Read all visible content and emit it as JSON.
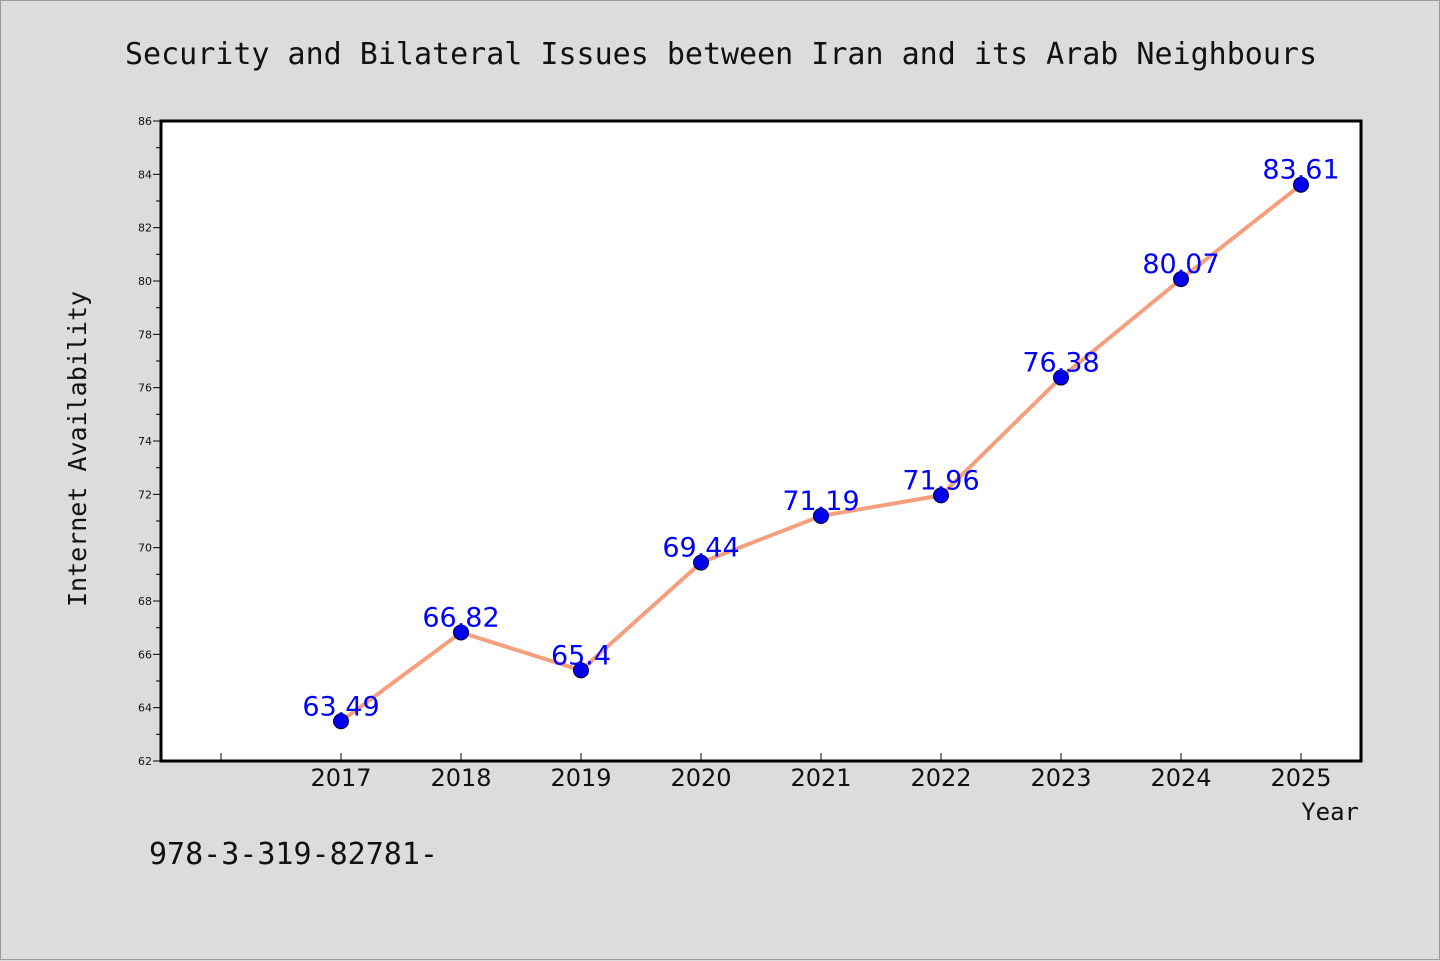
{
  "chart_data": {
    "type": "line",
    "title": "Security and Bilateral Issues between Iran and its Arab Neighbours",
    "xlabel": "Year",
    "ylabel": "Internet Availability",
    "categories": [
      "2017",
      "2018",
      "2019",
      "2020",
      "2021",
      "2022",
      "2023",
      "2024",
      "2025"
    ],
    "series": [
      {
        "values": [
          63.49,
          66.82,
          65.4,
          69.44,
          71.19,
          71.96,
          76.38,
          80.07,
          83.61
        ],
        "data_labels": [
          "63.49",
          "66.82",
          "65.4",
          "69.44",
          "71.19",
          "71.96",
          "76.38",
          "80.07",
          "83.61"
        ]
      }
    ],
    "ylim": [
      62,
      86
    ],
    "yticks": [
      "62",
      "64",
      "66",
      "68",
      "70",
      "72",
      "74",
      "76",
      "78",
      "80",
      "82",
      "84",
      "86"
    ],
    "grid": false,
    "legend": "none",
    "colors": {
      "line": "#f4a07e",
      "marker": "#0000ee",
      "marker_edge": "#000033",
      "label": "#0000ff",
      "plot_bg": "#ffffff",
      "figure_bg": "#dcdcdc"
    }
  },
  "footer_text": "978-3-319-82781-"
}
